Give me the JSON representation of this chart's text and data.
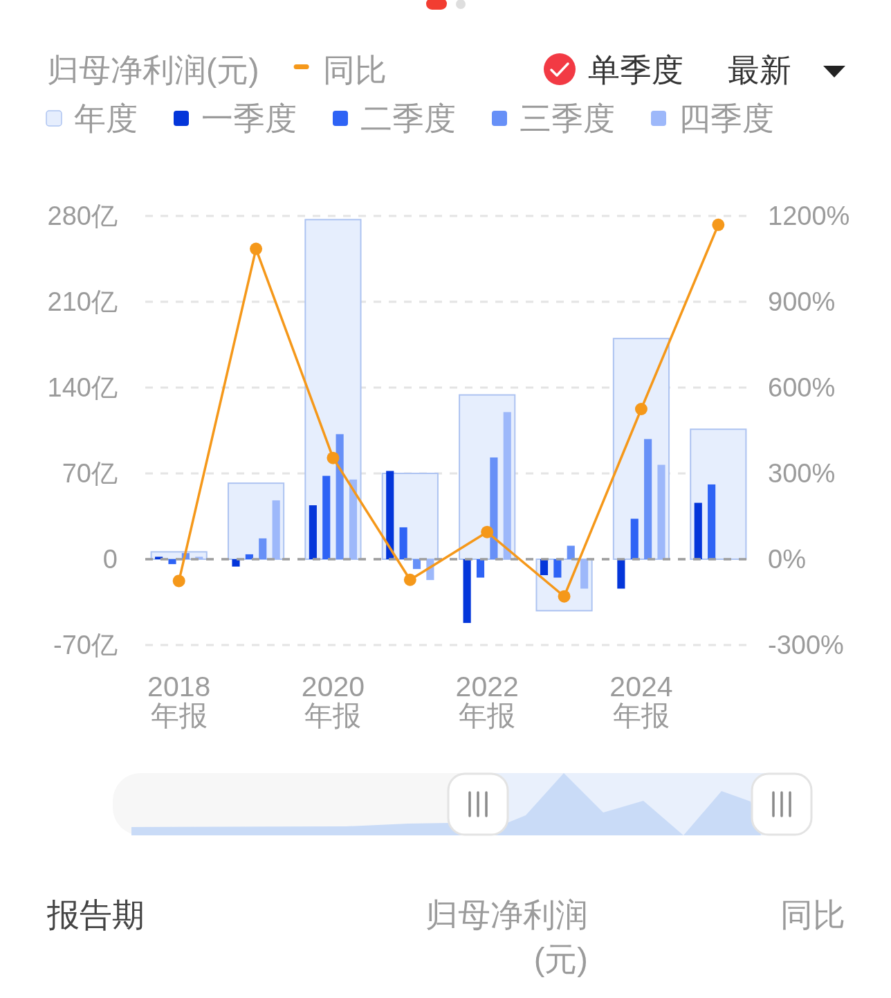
{
  "chart_data": {
    "type": "bar",
    "title": "归母净利润(元)",
    "categories": [
      "2018 年报",
      null,
      "2020 年报",
      null,
      "2022 年报",
      null,
      "2024 年报",
      null
    ],
    "series": [
      {
        "name": "年度",
        "color": "#e6eefd",
        "values": [
          6,
          62,
          277,
          70,
          134,
          -42,
          180,
          106
        ]
      },
      {
        "name": "一季度",
        "color": "#0436da",
        "values": [
          2,
          -6,
          44,
          72,
          -52,
          -13,
          -24,
          46
        ]
      },
      {
        "name": "二季度",
        "color": "#2e63f5",
        "values": [
          -4,
          4,
          68,
          26,
          -15,
          -15,
          33,
          61
        ]
      },
      {
        "name": "三季度",
        "color": "#6790f7",
        "values": [
          5,
          17,
          102,
          -8,
          83,
          11,
          98,
          null
        ]
      },
      {
        "name": "四季度",
        "color": "#9db8fa",
        "values": [
          2,
          48,
          65,
          -17,
          120,
          -24,
          77,
          null
        ]
      },
      {
        "name": "同比",
        "type": "line",
        "axis": "y2",
        "color": "#f5981a",
        "values": [
          -76,
          1085,
          354,
          -72,
          95,
          -130,
          525,
          1169
        ]
      }
    ],
    "ylim": [
      -70,
      280
    ],
    "yticks": [
      {
        "value": -70,
        "label": "-70亿"
      },
      0,
      {
        "value": 70,
        "label": "70亿"
      },
      {
        "value": 140,
        "label": "140亿"
      },
      {
        "value": 210,
        "label": "210亿"
      },
      {
        "value": 280,
        "label": "280亿"
      }
    ],
    "y2lim": [
      -300,
      1200
    ],
    "y2ticks": [
      {
        "value": -300,
        "label": "-300%"
      },
      {
        "value": 0,
        "label": "0%"
      },
      {
        "value": 300,
        "label": "300%"
      },
      {
        "value": 600,
        "label": "600%"
      },
      {
        "value": 900,
        "label": "900%"
      },
      {
        "value": 1200,
        "label": "1200%"
      }
    ],
    "ref_lines": [
      {
        "axis": "y",
        "value": 0,
        "color": "#9e9e9e",
        "line_style": "dashed"
      }
    ],
    "grid": "y",
    "legend": "top",
    "marker": "circle",
    "annotations": [
      "单季度",
      "最新",
      "报告期",
      "归母净利润(元)",
      "同比"
    ]
  }
}
